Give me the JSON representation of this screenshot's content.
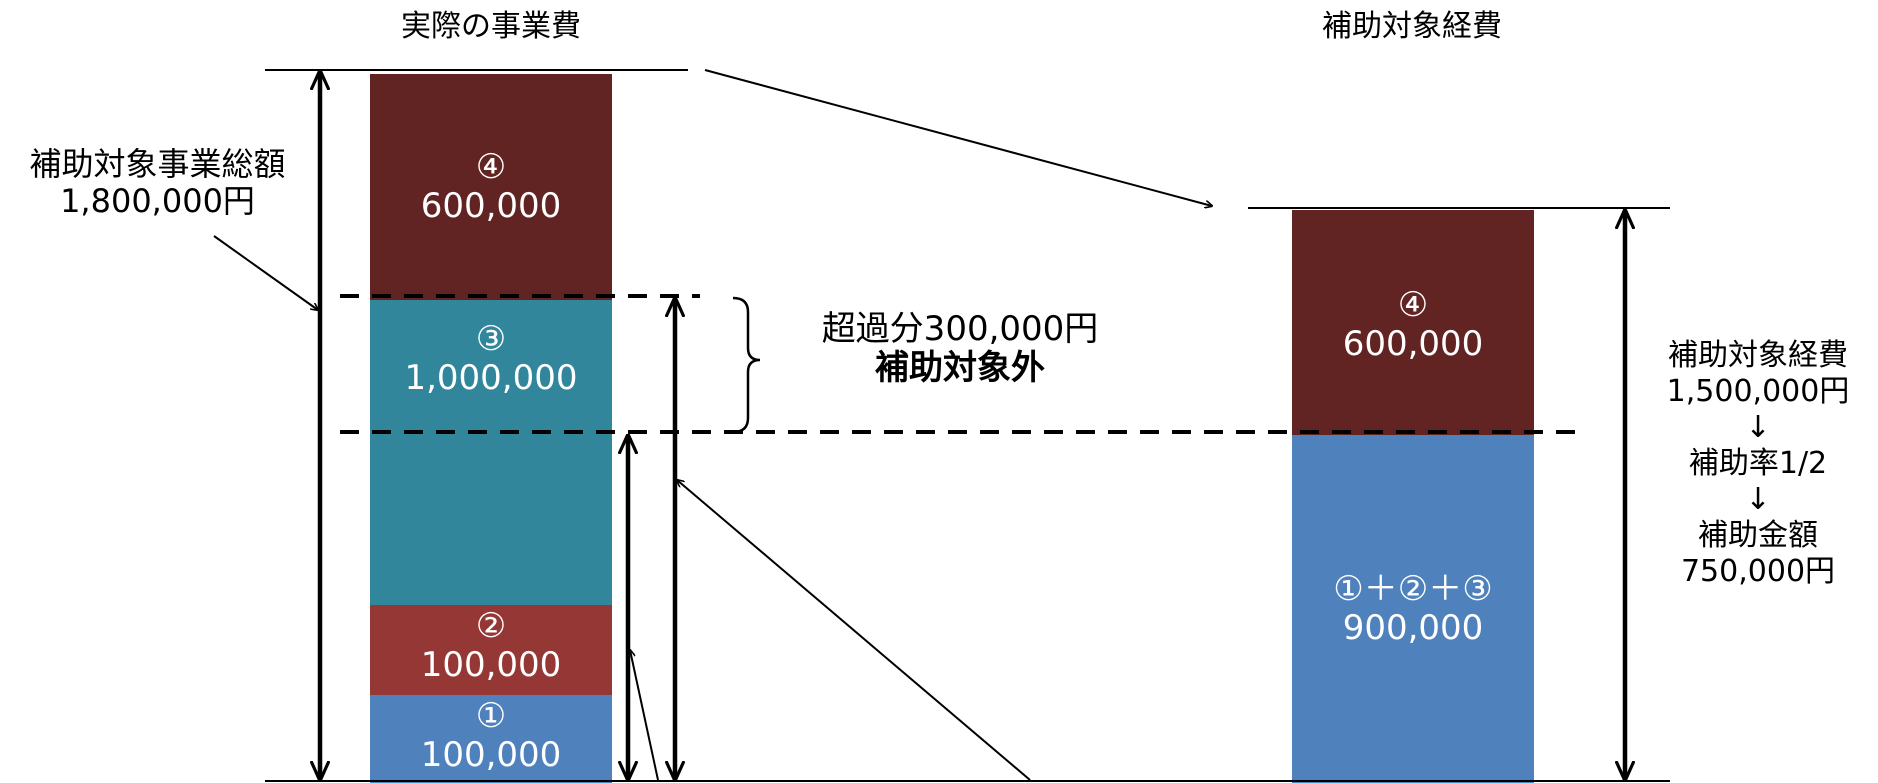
{
  "left_chart": {
    "title": "実際の事業費",
    "segments": {
      "s4": {
        "marker": "④",
        "value": "600,000",
        "color": "#622423"
      },
      "s3": {
        "marker": "③",
        "value": "1,000,000",
        "color": "#31869b"
      },
      "s2": {
        "marker": "②",
        "value": "100,000",
        "color": "#953735"
      },
      "s1": {
        "marker": "①",
        "value": "100,000",
        "color": "#4f81bd"
      }
    },
    "total": {
      "label": "補助対象事業総額",
      "value": "1,800,000円"
    },
    "excess": {
      "label": "超過分300,000円",
      "note": "補助対象外"
    }
  },
  "right_chart": {
    "title": "補助対象経費",
    "segments": {
      "top": {
        "marker": "④",
        "value": "600,000",
        "color": "#622423"
      },
      "bottom": {
        "marker": "①＋②＋③",
        "value": "900,000",
        "color": "#4f81bd"
      }
    },
    "summary": {
      "line1": "補助対象経費",
      "line2": "1,500,000円",
      "arrow1": "↓",
      "line3": "補助率1/2",
      "arrow2": "↓",
      "line4": "補助金額",
      "line5": "750,000円"
    }
  }
}
